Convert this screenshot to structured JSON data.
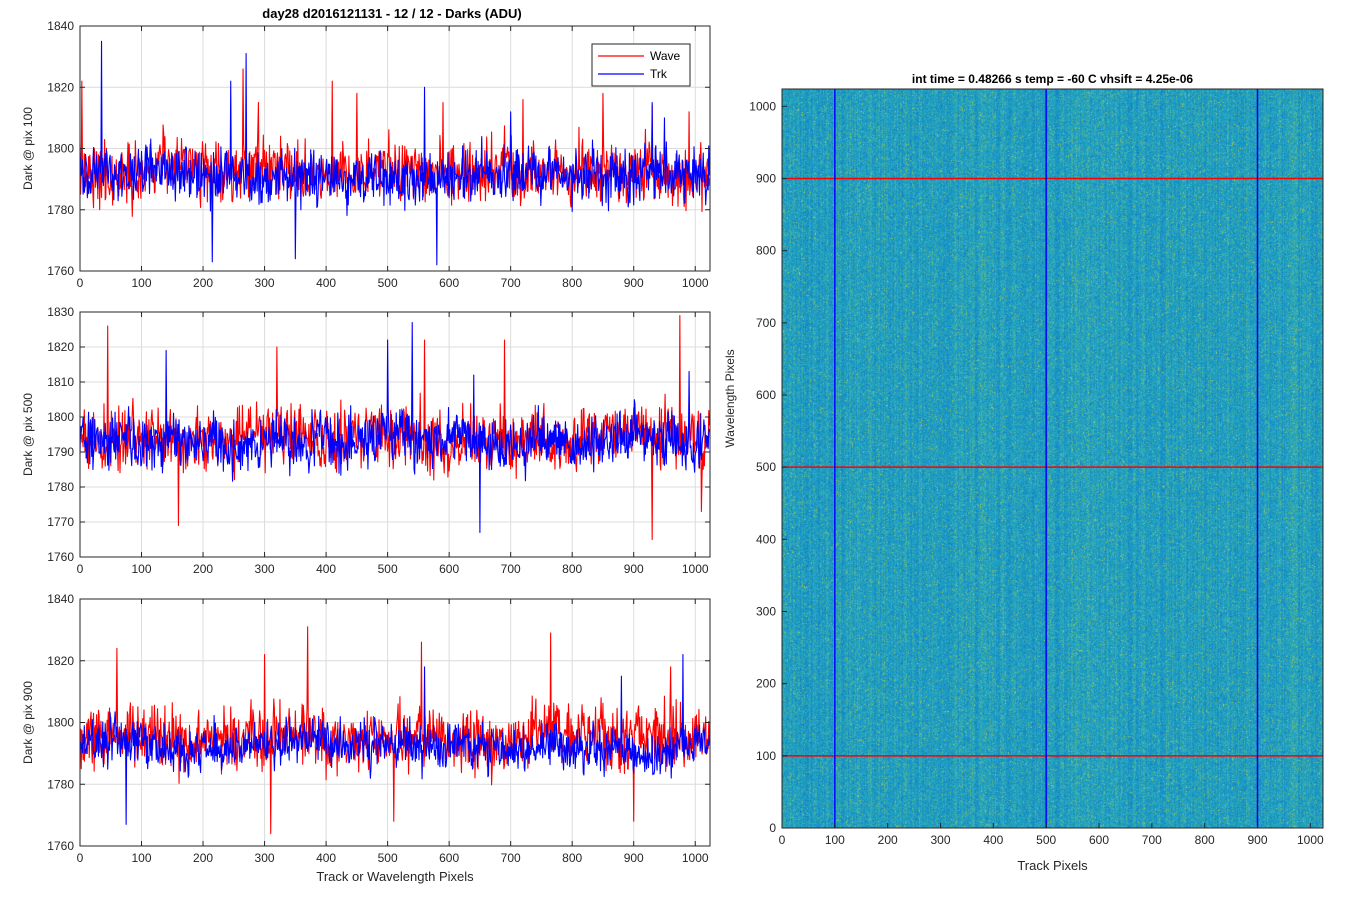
{
  "figure": {
    "suptitle": "day28 d2016121131 - 12 / 12 - Darks (ADU)"
  },
  "colors": {
    "wave": "#ff0000",
    "trk": "#0000ff",
    "grid": "#dcdcdc",
    "axis": "#262626",
    "heat_bg": "#1aa0c8"
  },
  "chart_data": [
    {
      "type": "line",
      "id": "p100",
      "ylabel": "Dark @ pix 100",
      "xlabel": "",
      "xlim": [
        0,
        1024
      ],
      "ylim": [
        1760,
        1840
      ],
      "xticks": [
        0,
        100,
        200,
        300,
        400,
        500,
        600,
        700,
        800,
        900,
        1000
      ],
      "yticks": [
        1760,
        1780,
        1800,
        1820,
        1840
      ],
      "grid": true,
      "legend": {
        "position": "top-right",
        "entries": [
          "Wave",
          "Trk"
        ]
      },
      "series": [
        {
          "name": "Wave",
          "color": "#ff0000",
          "baseline": 1792,
          "noise": 8,
          "spikes": [
            [
              3,
              1822
            ],
            [
              265,
              1826
            ],
            [
              290,
              1815
            ],
            [
              410,
              1822
            ],
            [
              450,
              1818
            ],
            [
              590,
              1815
            ],
            [
              720,
              1816
            ],
            [
              850,
              1818
            ],
            [
              930,
              1814
            ],
            [
              990,
              1812
            ]
          ]
        },
        {
          "name": "Trk",
          "color": "#0000ff",
          "baseline": 1791,
          "noise": 7,
          "spikes": [
            [
              35,
              1835
            ],
            [
              270,
              1831
            ],
            [
              245,
              1822
            ],
            [
              560,
              1820
            ],
            [
              700,
              1812
            ],
            [
              930,
              1815
            ],
            [
              950,
              1810
            ],
            [
              215,
              1763
            ],
            [
              580,
              1762
            ],
            [
              350,
              1764
            ]
          ]
        }
      ]
    },
    {
      "type": "line",
      "id": "p500",
      "ylabel": "Dark @ pix 500",
      "xlabel": "",
      "xlim": [
        0,
        1024
      ],
      "ylim": [
        1760,
        1830
      ],
      "xticks": [
        0,
        100,
        200,
        300,
        400,
        500,
        600,
        700,
        800,
        900,
        1000
      ],
      "yticks": [
        1760,
        1770,
        1780,
        1790,
        1800,
        1810,
        1820,
        1830
      ],
      "grid": true,
      "series": [
        {
          "name": "Wave",
          "color": "#ff0000",
          "baseline": 1794,
          "noise": 7,
          "spikes": [
            [
              45,
              1826
            ],
            [
              320,
              1820
            ],
            [
              560,
              1822
            ],
            [
              690,
              1822
            ],
            [
              975,
              1829
            ],
            [
              1010,
              1773
            ],
            [
              930,
              1765
            ],
            [
              160,
              1769
            ]
          ]
        },
        {
          "name": "Trk",
          "color": "#0000ff",
          "baseline": 1793,
          "noise": 6,
          "spikes": [
            [
              500,
              1822
            ],
            [
              540,
              1827
            ],
            [
              140,
              1819
            ],
            [
              990,
              1813
            ],
            [
              640,
              1812
            ],
            [
              650,
              1767
            ]
          ]
        }
      ]
    },
    {
      "type": "line",
      "id": "p900",
      "ylabel": "Dark @ pix 900",
      "xlabel": "Track or Wavelength Pixels",
      "xlim": [
        0,
        1024
      ],
      "ylim": [
        1760,
        1840
      ],
      "xticks": [
        0,
        100,
        200,
        300,
        400,
        500,
        600,
        700,
        800,
        900,
        1000
      ],
      "yticks": [
        1760,
        1780,
        1800,
        1820,
        1840
      ],
      "grid": true,
      "series": [
        {
          "name": "Wave",
          "color": "#ff0000",
          "baseline": 1795,
          "noise": 8,
          "spikes": [
            [
              370,
              1831
            ],
            [
              300,
              1822
            ],
            [
              555,
              1826
            ],
            [
              765,
              1829
            ],
            [
              960,
              1818
            ],
            [
              310,
              1764
            ],
            [
              510,
              1768
            ],
            [
              900,
              1768
            ],
            [
              60,
              1824
            ]
          ]
        },
        {
          "name": "Trk",
          "color": "#0000ff",
          "baseline": 1792,
          "noise": 6,
          "spikes": [
            [
              980,
              1822
            ],
            [
              75,
              1767
            ],
            [
              560,
              1818
            ],
            [
              880,
              1815
            ]
          ]
        }
      ]
    },
    {
      "type": "heatmap",
      "id": "dark-image",
      "title": "int time = 0.48266 s    temp = -60 C    vhsift = 4.25e-06",
      "xlabel": "Track Pixels",
      "ylabel": "Wavelength Pixels",
      "xlim": [
        0,
        1024
      ],
      "ylim": [
        0,
        1024
      ],
      "xticks": [
        0,
        100,
        200,
        300,
        400,
        500,
        600,
        700,
        800,
        900,
        1000
      ],
      "yticks": [
        0,
        100,
        200,
        300,
        400,
        500,
        600,
        700,
        800,
        900,
        1000
      ],
      "vertical_markers": [
        100,
        500,
        900
      ],
      "horizontal_markers": [
        100,
        500,
        900
      ],
      "vertical_marker_color": "#0000ff",
      "horizontal_marker_color": "#ff0000"
    }
  ]
}
